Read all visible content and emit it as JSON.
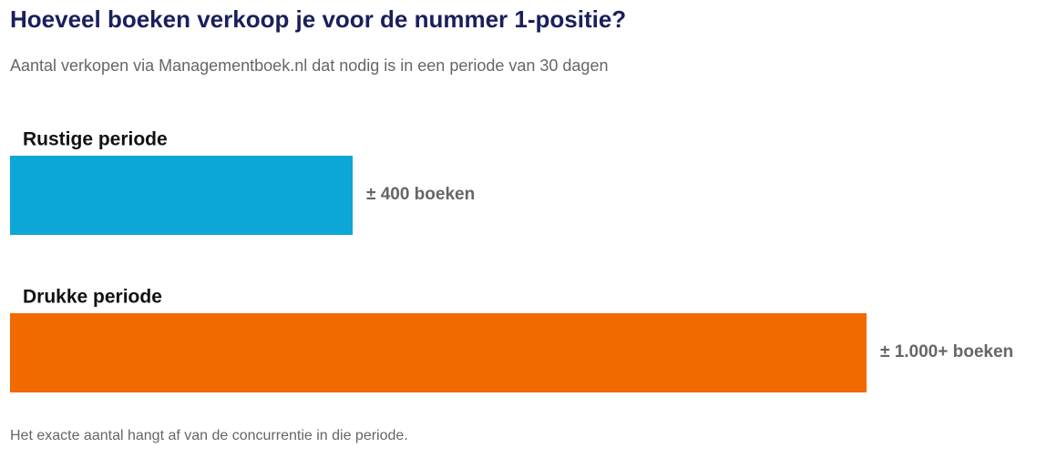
{
  "chart_data": {
    "type": "bar",
    "orientation": "horizontal",
    "title": "Hoeveel boeken verkoop je voor de nummer 1-positie?",
    "subtitle": "Aantal verkopen via Managementboek.nl dat nodig is in een periode van 30 dagen",
    "categories": [
      "Rustige periode",
      "Drukke periode"
    ],
    "values": [
      400,
      1000
    ],
    "value_labels": [
      "± 400 boeken",
      "± 1.000+ boeken"
    ],
    "colors": [
      "#0ca7d6",
      "#f06a00"
    ],
    "caption": "Het exacte aantal hangt af van de concurrentie in die periode."
  }
}
